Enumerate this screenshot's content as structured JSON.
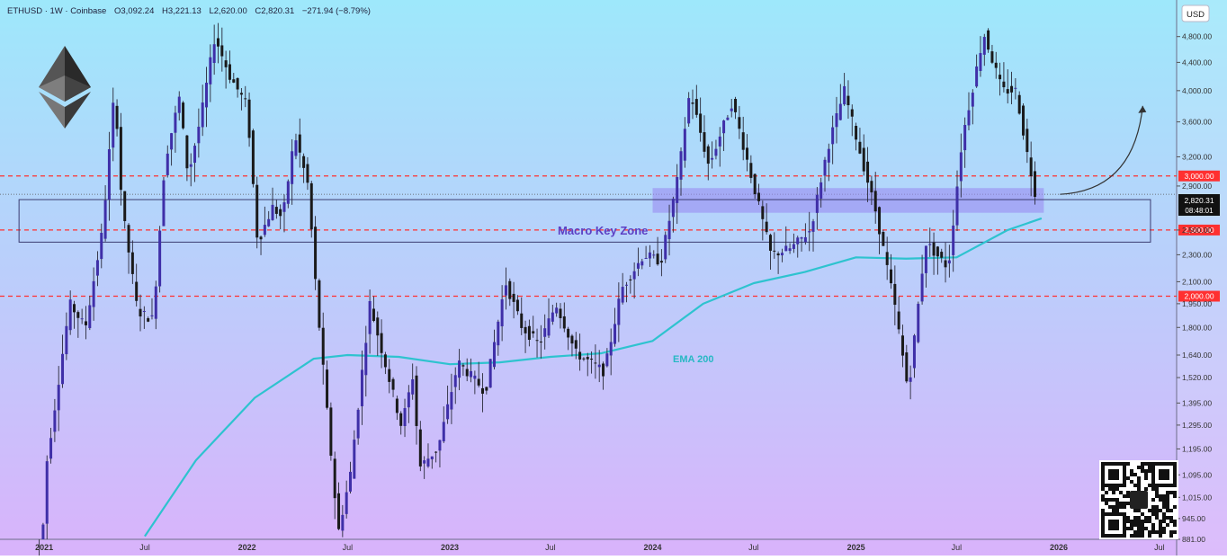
{
  "header": {
    "symbol": "ETHUSD · 1W · Coinbase",
    "open": "O3,092.24",
    "high": "H3,221.13",
    "low": "L2,620.00",
    "close": "C2,820.31",
    "change": "−271.94 (−8.79%)"
  },
  "currency_button": "USD",
  "price_badge": {
    "price": "2,820.31",
    "countdown": "08:48:01"
  },
  "annotations": {
    "zone_label": "Macro Key Zone",
    "ema_label": "EMA 200"
  },
  "colors": {
    "background_top": "#9ee8fb",
    "background_bottom": "#d9b3fb",
    "candle": "#3f2fa8",
    "ema": "#2ec3cf",
    "support_line": "#ff3030",
    "zone_fill": "#9a8cf2"
  },
  "chart_data": {
    "type": "candlestick",
    "title": "ETHUSD · 1W · Coinbase",
    "xlabel": "",
    "ylabel": "",
    "x_range": [
      "2020-12-01",
      "2026-08-01"
    ],
    "ylim": [
      881,
      5300
    ],
    "y_scale": "log",
    "grid": false,
    "y_ticks": [
      881,
      945,
      1015,
      1095,
      1195,
      1295,
      1395,
      1520,
      1640,
      1800,
      1950,
      2100,
      2300,
      2500,
      2900,
      3200,
      3600,
      4000,
      4400,
      4800
    ],
    "y_tick_labels": [
      "881.00",
      "945.00",
      "1,015.00",
      "1,095.00",
      "1,195.00",
      "1,295.00",
      "1,395.00",
      "1,520.00",
      "1,640.00",
      "1,800.00",
      "1,950.00",
      "2,100.00",
      "2,300.00",
      "2,500.00",
      "2,900.00",
      "3,200.00",
      "3,600.00",
      "4,000.00",
      "4,400.00",
      "4,800.00"
    ],
    "x_ticks": [
      {
        "date": "2021-01-01",
        "label": "2021"
      },
      {
        "date": "2021-07-01",
        "label": "Jul"
      },
      {
        "date": "2022-01-01",
        "label": "2022"
      },
      {
        "date": "2022-07-01",
        "label": "Jul"
      },
      {
        "date": "2023-01-01",
        "label": "2023"
      },
      {
        "date": "2023-07-01",
        "label": "Jul"
      },
      {
        "date": "2024-01-01",
        "label": "2024"
      },
      {
        "date": "2024-07-01",
        "label": "Jul"
      },
      {
        "date": "2025-01-01",
        "label": "2025"
      },
      {
        "date": "2025-07-01",
        "label": "Jul"
      },
      {
        "date": "2026-01-01",
        "label": "2026"
      },
      {
        "date": "2026-07-01",
        "label": "Jul"
      }
    ],
    "horizontal_levels": [
      {
        "value": 3000,
        "label": "3,000.00"
      },
      {
        "value": 2500,
        "label": "2,500.00"
      },
      {
        "value": 2000,
        "label": "2,000.00"
      }
    ],
    "last_price": 2820.31,
    "key_zone": {
      "label": "Macro Key Zone",
      "x_start": "2021-01-01",
      "x_end": "2026-06-15",
      "y_low": 2400,
      "y_high": 2770
    },
    "highlight_zone": {
      "x_start": "2024-01-01",
      "x_end": "2025-12-05",
      "y_low": 2650,
      "y_high": 2880
    },
    "projection_arrow": {
      "x_start": "2025-12-05",
      "x_end": "2026-06-01",
      "y_start": 2820,
      "y_end": 3800
    },
    "ema200": {
      "name": "EMA 200",
      "points": [
        {
          "date": "2021-07-01",
          "value": 890
        },
        {
          "date": "2021-10-01",
          "value": 1150
        },
        {
          "date": "2022-01-15",
          "value": 1420
        },
        {
          "date": "2022-05-01",
          "value": 1620
        },
        {
          "date": "2022-07-01",
          "value": 1640
        },
        {
          "date": "2022-10-01",
          "value": 1630
        },
        {
          "date": "2023-01-01",
          "value": 1590
        },
        {
          "date": "2023-04-01",
          "value": 1600
        },
        {
          "date": "2023-07-01",
          "value": 1630
        },
        {
          "date": "2023-10-01",
          "value": 1650
        },
        {
          "date": "2024-01-01",
          "value": 1720
        },
        {
          "date": "2024-04-01",
          "value": 1950
        },
        {
          "date": "2024-07-01",
          "value": 2090
        },
        {
          "date": "2024-10-01",
          "value": 2170
        },
        {
          "date": "2025-01-01",
          "value": 2280
        },
        {
          "date": "2025-04-01",
          "value": 2270
        },
        {
          "date": "2025-07-01",
          "value": 2280
        },
        {
          "date": "2025-10-01",
          "value": 2500
        },
        {
          "date": "2025-12-01",
          "value": 2600
        }
      ]
    },
    "price_path": [
      {
        "date": "2020-12-20",
        "value": 600
      },
      {
        "date": "2021-01-10",
        "value": 1150
      },
      {
        "date": "2021-02-20",
        "value": 1950
      },
      {
        "date": "2021-03-20",
        "value": 1800
      },
      {
        "date": "2021-04-20",
        "value": 2500
      },
      {
        "date": "2021-05-12",
        "value": 4050
      },
      {
        "date": "2021-05-25",
        "value": 2700
      },
      {
        "date": "2021-06-22",
        "value": 1900
      },
      {
        "date": "2021-07-20",
        "value": 1850
      },
      {
        "date": "2021-08-10",
        "value": 3150
      },
      {
        "date": "2021-09-05",
        "value": 3900
      },
      {
        "date": "2021-09-21",
        "value": 3000
      },
      {
        "date": "2021-10-15",
        "value": 3700
      },
      {
        "date": "2021-11-08",
        "value": 4800
      },
      {
        "date": "2021-12-05",
        "value": 4200
      },
      {
        "date": "2022-01-05",
        "value": 3800
      },
      {
        "date": "2022-01-24",
        "value": 2400
      },
      {
        "date": "2022-02-20",
        "value": 2700
      },
      {
        "date": "2022-03-10",
        "value": 2600
      },
      {
        "date": "2022-04-01",
        "value": 3450
      },
      {
        "date": "2022-04-25",
        "value": 2900
      },
      {
        "date": "2022-05-10",
        "value": 2000
      },
      {
        "date": "2022-06-18",
        "value": 900
      },
      {
        "date": "2022-07-10",
        "value": 1100
      },
      {
        "date": "2022-08-14",
        "value": 1950
      },
      {
        "date": "2022-09-10",
        "value": 1600
      },
      {
        "date": "2022-10-10",
        "value": 1290
      },
      {
        "date": "2022-11-01",
        "value": 1550
      },
      {
        "date": "2022-11-10",
        "value": 1120
      },
      {
        "date": "2022-12-15",
        "value": 1200
      },
      {
        "date": "2023-01-20",
        "value": 1600
      },
      {
        "date": "2023-03-10",
        "value": 1450
      },
      {
        "date": "2023-04-15",
        "value": 2100
      },
      {
        "date": "2023-05-15",
        "value": 1800
      },
      {
        "date": "2023-06-15",
        "value": 1700
      },
      {
        "date": "2023-07-15",
        "value": 1950
      },
      {
        "date": "2023-08-20",
        "value": 1650
      },
      {
        "date": "2023-10-10",
        "value": 1550
      },
      {
        "date": "2023-11-10",
        "value": 2050
      },
      {
        "date": "2023-12-20",
        "value": 2300
      },
      {
        "date": "2024-01-20",
        "value": 2250
      },
      {
        "date": "2024-02-20",
        "value": 3000
      },
      {
        "date": "2024-03-12",
        "value": 4000
      },
      {
        "date": "2024-04-15",
        "value": 3100
      },
      {
        "date": "2024-05-27",
        "value": 3850
      },
      {
        "date": "2024-07-05",
        "value": 2900
      },
      {
        "date": "2024-08-05",
        "value": 2300
      },
      {
        "date": "2024-09-10",
        "value": 2350
      },
      {
        "date": "2024-10-15",
        "value": 2500
      },
      {
        "date": "2024-11-15",
        "value": 3300
      },
      {
        "date": "2024-12-15",
        "value": 4000
      },
      {
        "date": "2025-01-10",
        "value": 3300
      },
      {
        "date": "2025-02-10",
        "value": 2650
      },
      {
        "date": "2025-03-15",
        "value": 1950
      },
      {
        "date": "2025-04-09",
        "value": 1450
      },
      {
        "date": "2025-05-10",
        "value": 2400
      },
      {
        "date": "2025-06-20",
        "value": 2200
      },
      {
        "date": "2025-07-15",
        "value": 3400
      },
      {
        "date": "2025-08-23",
        "value": 4850
      },
      {
        "date": "2025-09-25",
        "value": 4000
      },
      {
        "date": "2025-10-20",
        "value": 4000
      },
      {
        "date": "2025-11-10",
        "value": 3200
      },
      {
        "date": "2025-11-24",
        "value": 2820
      }
    ]
  }
}
